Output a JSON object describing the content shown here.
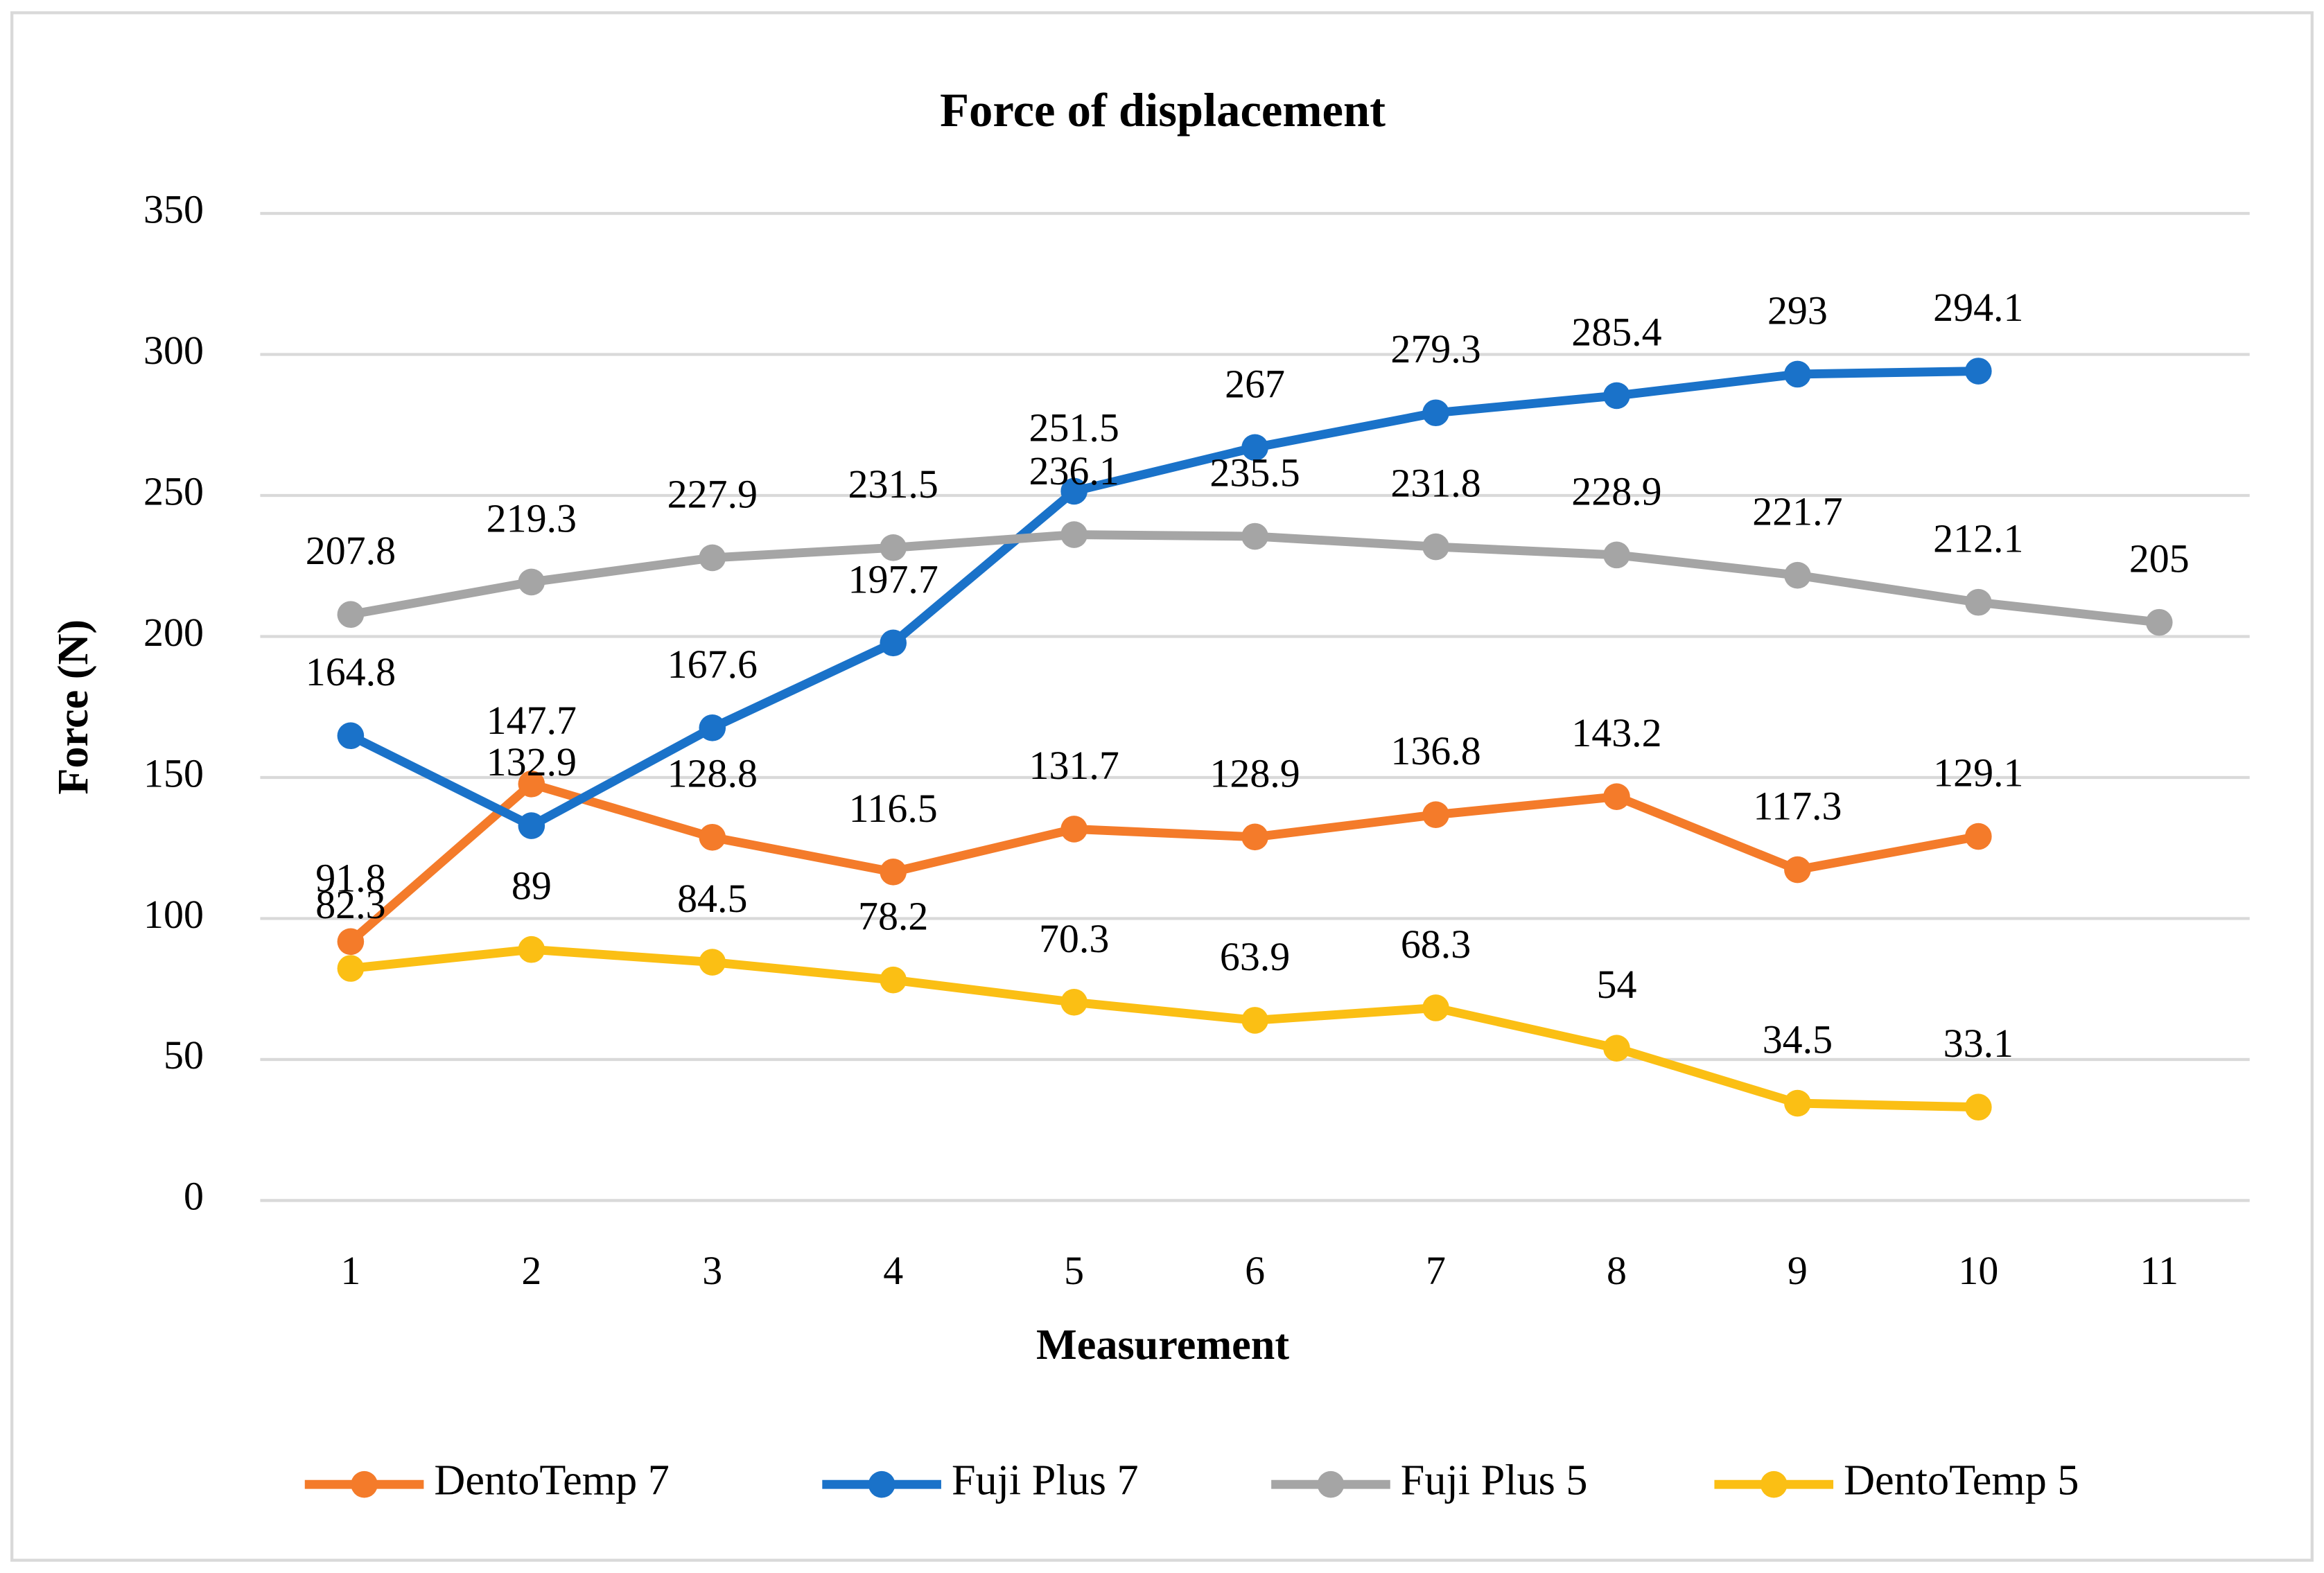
{
  "chart_data": {
    "type": "line",
    "title": "Force of displacement",
    "x_label": "Measurement",
    "y_label": "Force (N)",
    "categories": [
      "1",
      "2",
      "3",
      "4",
      "5",
      "6",
      "7",
      "8",
      "9",
      "10",
      "11"
    ],
    "series": [
      {
        "name": "DentoTemp 7",
        "color": "#f47b2a",
        "values": [
          91.8,
          147.7,
          128.8,
          116.5,
          131.7,
          128.9,
          136.8,
          143.2,
          117.3,
          129.1,
          null
        ]
      },
      {
        "name": "Fuji Plus 7",
        "color": "#1a72c9",
        "values": [
          164.8,
          132.9,
          167.6,
          197.7,
          251.5,
          267,
          279.3,
          285.4,
          293,
          294.1,
          null
        ]
      },
      {
        "name": "Fuji Plus 5",
        "color": "#a5a5a5",
        "values": [
          207.8,
          219.3,
          227.9,
          231.5,
          236.1,
          235.5,
          231.8,
          228.9,
          221.7,
          212.1,
          205
        ]
      },
      {
        "name": "DentoTemp 5",
        "color": "#fbbf14",
        "values": [
          82.3,
          89,
          84.5,
          78.2,
          70.3,
          63.9,
          68.3,
          54,
          34.5,
          33.1,
          null
        ]
      }
    ],
    "ylim": [
      0,
      350
    ],
    "yticks": [
      0,
      50,
      100,
      150,
      200,
      250,
      300,
      350
    ],
    "grid": true,
    "legend": "bottom"
  }
}
